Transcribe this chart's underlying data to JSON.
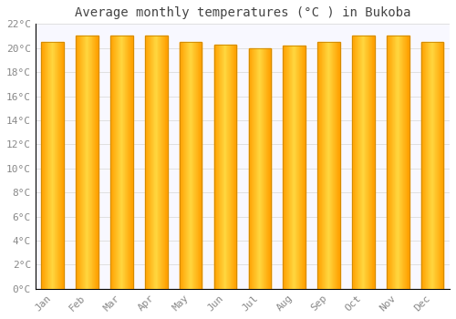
{
  "months": [
    "Jan",
    "Feb",
    "Mar",
    "Apr",
    "May",
    "Jun",
    "Jul",
    "Aug",
    "Sep",
    "Oct",
    "Nov",
    "Dec"
  ],
  "temperatures": [
    20.5,
    21.0,
    21.0,
    21.0,
    20.5,
    20.3,
    20.0,
    20.2,
    20.5,
    21.0,
    21.0,
    20.5
  ],
  "title": "Average monthly temperatures (°C ) in Bukoba",
  "bar_color_center": "#FFD740",
  "bar_color_edge": "#FFA000",
  "bar_outline_color": "#CC8800",
  "background_color": "#FFFFFF",
  "plot_bg_color": "#F8F8FF",
  "grid_color": "#E0E0E0",
  "ylim": [
    0,
    22
  ],
  "ytick_step": 2,
  "title_fontsize": 10,
  "tick_fontsize": 8,
  "tick_color": "#888888",
  "title_color": "#444444",
  "bar_width": 0.65
}
